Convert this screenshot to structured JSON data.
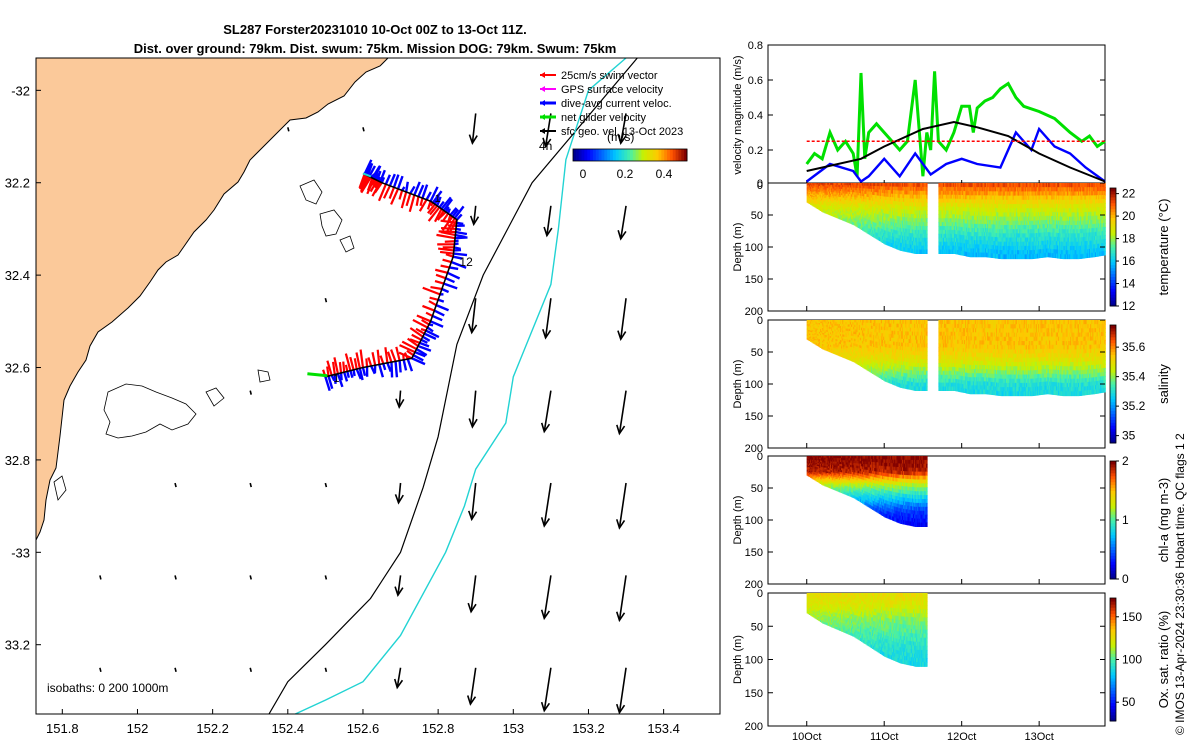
{
  "title": {
    "line1": "SL287 Forster20231010 10-Oct 00Z to 13-Oct 11Z.",
    "line2": "Dist. over ground: 79km. Dist. swum: 75km. Mission DOG: 79km. Swum: 75km"
  },
  "credit": "© IMOS 13-Apr-2024 23:30:36 Hobart time. QC flags 1  2",
  "colors": {
    "land": "#fbc99a",
    "swim": "#ff0000",
    "gps": "#ff00ff",
    "current": "#0000ff",
    "net": "#00e000",
    "sfc": "#000000",
    "isobath200": "#000000",
    "isobath1000": "#22d3d3"
  },
  "chart_data": [
    {
      "type": "map",
      "legend": {
        "entries": [
          "25cm/s swim vector",
          "GPS surface velocity",
          "dive-avg current veloc.",
          "net glider velocity",
          "sfc geo. vel. 13-Oct 2023"
        ],
        "placement": "top-right"
      },
      "annotation_4h": "4h",
      "colorbar": {
        "label": "(m/s)",
        "ticks": [
          "0",
          "0.2",
          "0.4"
        ],
        "range": [
          0,
          0.5
        ]
      },
      "isobath_note": "isobaths: 0   200  1000m",
      "lon_ticks": [
        151.8,
        152,
        152.2,
        152.4,
        152.6,
        152.8,
        153,
        153.2,
        153.4
      ],
      "lat_ticks": [
        -32,
        -32.2,
        -32.4,
        -32.6,
        -32.8,
        -33,
        -33.2
      ],
      "lat_tick_labels": [
        "-32",
        "32.2",
        "32.4",
        "32.6",
        "32.8",
        "-33",
        "33.2"
      ],
      "lon_range": [
        151.73,
        153.55
      ],
      "lat_range": [
        -33.35,
        -31.93
      ],
      "track_labels": [
        "1",
        "12",
        "1"
      ],
      "track": [
        [
          152.5,
          -32.62
        ],
        [
          152.6,
          -32.6
        ],
        [
          152.73,
          -32.58
        ],
        [
          152.78,
          -32.5
        ],
        [
          152.84,
          -32.36
        ],
        [
          152.85,
          -32.28
        ],
        [
          152.78,
          -32.24
        ],
        [
          152.65,
          -32.2
        ],
        [
          152.6,
          -32.18
        ]
      ],
      "isobath_200": [
        [
          153.33,
          -31.93
        ],
        [
          153.05,
          -32.2
        ],
        [
          152.92,
          -32.4
        ],
        [
          152.85,
          -32.55
        ],
        [
          152.8,
          -32.75
        ],
        [
          152.76,
          -32.86
        ],
        [
          152.7,
          -33
        ],
        [
          152.62,
          -33.1
        ],
        [
          152.56,
          -33.15
        ],
        [
          152.5,
          -33.2
        ],
        [
          152.4,
          -33.28
        ],
        [
          152.35,
          -33.35
        ]
      ],
      "isobath_1000": [
        [
          153.3,
          -31.93
        ],
        [
          153.2,
          -32.0
        ],
        [
          153.14,
          -32.15
        ],
        [
          153.12,
          -32.3
        ],
        [
          153.1,
          -32.42
        ],
        [
          153.03,
          -32.56
        ],
        [
          153.0,
          -32.62
        ],
        [
          152.98,
          -32.72
        ],
        [
          152.9,
          -32.82
        ],
        [
          152.87,
          -32.9
        ],
        [
          152.82,
          -33.0
        ],
        [
          152.7,
          -33.18
        ],
        [
          152.6,
          -33.28
        ],
        [
          152.5,
          -33.32
        ],
        [
          152.42,
          -33.35
        ]
      ],
      "current_vectors": [
        {
          "lon": 152.9,
          "lat": -32.05,
          "u": -0.05,
          "v": -0.45
        },
        {
          "lon": 153.1,
          "lat": -32.05,
          "u": -0.08,
          "v": -0.5
        },
        {
          "lon": 153.3,
          "lat": -32.05,
          "u": -0.08,
          "v": -0.45
        },
        {
          "lon": 152.9,
          "lat": -32.25,
          "u": -0.03,
          "v": -0.28
        },
        {
          "lon": 153.1,
          "lat": -32.25,
          "u": -0.06,
          "v": -0.45
        },
        {
          "lon": 153.3,
          "lat": -32.25,
          "u": -0.08,
          "v": -0.5
        },
        {
          "lon": 152.9,
          "lat": -32.45,
          "u": -0.06,
          "v": -0.52
        },
        {
          "lon": 153.1,
          "lat": -32.45,
          "u": -0.08,
          "v": -0.6
        },
        {
          "lon": 153.3,
          "lat": -32.45,
          "u": -0.08,
          "v": -0.62
        },
        {
          "lon": 152.7,
          "lat": -32.65,
          "u": -0.02,
          "v": -0.25
        },
        {
          "lon": 152.9,
          "lat": -32.65,
          "u": -0.05,
          "v": -0.55
        },
        {
          "lon": 153.1,
          "lat": -32.65,
          "u": -0.1,
          "v": -0.62
        },
        {
          "lon": 153.3,
          "lat": -32.65,
          "u": -0.1,
          "v": -0.65
        },
        {
          "lon": 152.7,
          "lat": -32.85,
          "u": -0.03,
          "v": -0.3
        },
        {
          "lon": 152.9,
          "lat": -32.85,
          "u": -0.06,
          "v": -0.55
        },
        {
          "lon": 153.1,
          "lat": -32.85,
          "u": -0.1,
          "v": -0.65
        },
        {
          "lon": 153.3,
          "lat": -32.85,
          "u": -0.1,
          "v": -0.68
        },
        {
          "lon": 152.7,
          "lat": -33.05,
          "u": -0.04,
          "v": -0.3
        },
        {
          "lon": 152.9,
          "lat": -33.05,
          "u": -0.07,
          "v": -0.55
        },
        {
          "lon": 153.1,
          "lat": -33.05,
          "u": -0.1,
          "v": -0.65
        },
        {
          "lon": 153.3,
          "lat": -33.05,
          "u": -0.1,
          "v": -0.68
        },
        {
          "lon": 152.7,
          "lat": -33.25,
          "u": -0.05,
          "v": -0.3
        },
        {
          "lon": 152.9,
          "lat": -33.25,
          "u": -0.08,
          "v": -0.55
        },
        {
          "lon": 153.1,
          "lat": -33.25,
          "u": -0.1,
          "v": -0.65
        },
        {
          "lon": 153.3,
          "lat": -33.25,
          "u": -0.1,
          "v": -0.68
        }
      ],
      "current_dots": [
        [
          152.6,
          -32.08
        ],
        [
          152.4,
          -32.08
        ],
        [
          152.5,
          -32.45
        ],
        [
          152.3,
          -32.65
        ],
        [
          152.1,
          -32.85
        ],
        [
          152.3,
          -32.85
        ],
        [
          151.9,
          -33.05
        ],
        [
          152.1,
          -33.05
        ],
        [
          152.3,
          -33.05
        ],
        [
          151.9,
          -33.25
        ],
        [
          152.1,
          -33.25
        ],
        [
          152.3,
          -33.25
        ],
        [
          152.5,
          -32.85
        ],
        [
          152.5,
          -33.05
        ],
        [
          152.5,
          -33.25
        ]
      ]
    },
    {
      "type": "line",
      "ylabel": "velocity magnitude (m/s)",
      "ylim": [
        0,
        0.8
      ],
      "yticks": [
        "0",
        "0.2",
        "0.4",
        "0.6",
        "0.8"
      ],
      "x_range_days": [
        9.5,
        13.85
      ],
      "series": [
        {
          "color": "#00e000",
          "x": [
            10,
            10.1,
            10.2,
            10.3,
            10.4,
            10.5,
            10.6,
            10.65,
            10.7,
            10.75,
            10.8,
            10.9,
            11.0,
            11.1,
            11.2,
            11.3,
            11.4,
            11.5,
            11.55,
            11.6,
            11.65,
            11.7,
            11.8,
            11.9,
            12.0,
            12.1,
            12.15,
            12.2,
            12.3,
            12.4,
            12.5,
            12.6,
            12.7,
            12.8,
            13.0,
            13.2,
            13.4,
            13.55,
            13.65,
            13.75,
            13.85
          ],
          "y": [
            0.12,
            0.18,
            0.15,
            0.3,
            0.2,
            0.25,
            0.18,
            0.05,
            0.64,
            0.15,
            0.3,
            0.35,
            0.3,
            0.25,
            0.2,
            0.25,
            0.6,
            0.05,
            0.3,
            0.2,
            0.65,
            0.25,
            0.2,
            0.3,
            0.45,
            0.45,
            0.3,
            0.44,
            0.48,
            0.5,
            0.55,
            0.58,
            0.5,
            0.45,
            0.42,
            0.38,
            0.3,
            0.25,
            0.28,
            0.22,
            0.25
          ]
        },
        {
          "color": "#0000ff",
          "x": [
            10,
            10.3,
            10.6,
            10.7,
            10.8,
            11.0,
            11.2,
            11.4,
            11.6,
            11.8,
            12.0,
            12.2,
            12.5,
            12.7,
            12.9,
            13.0,
            13.2,
            13.4,
            13.6,
            13.85
          ],
          "y": [
            0.02,
            0.12,
            0.08,
            0.02,
            0.05,
            0.15,
            0.05,
            0.18,
            0.06,
            0.12,
            0.15,
            0.12,
            0.1,
            0.3,
            0.2,
            0.32,
            0.22,
            0.18,
            0.1,
            0.02
          ]
        },
        {
          "color": "#000000",
          "x": [
            10,
            10.7,
            11.0,
            11.5,
            11.9,
            12.2,
            12.6,
            13.0,
            13.4,
            13.85
          ],
          "y": [
            0.08,
            0.15,
            0.22,
            0.32,
            0.36,
            0.33,
            0.28,
            0.18,
            0.1,
            0.02
          ]
        },
        {
          "color": "#ff0000",
          "dashed": true,
          "x": [
            10,
            13.85
          ],
          "y": [
            0.25,
            0.25
          ]
        }
      ]
    },
    {
      "type": "heatmap",
      "ylabel": "Depth (m)",
      "cbar_label": "temperature (°C)",
      "ylim": [
        0,
        200
      ],
      "yticks": [
        "0",
        "50",
        "100",
        "150",
        "200"
      ],
      "cbar_range": [
        12,
        22.5
      ],
      "cbar_ticks": [
        "12",
        "14",
        "16",
        "18",
        "20",
        "22"
      ],
      "segments": [
        {
          "x": [
            10.0,
            10.2,
            10.4,
            10.6,
            10.8,
            11.0,
            11.2,
            11.4,
            11.55
          ],
          "max_depth": [
            30,
            45,
            55,
            65,
            80,
            95,
            105,
            110,
            110
          ]
        },
        {
          "x": [
            11.7,
            11.9,
            12.1,
            12.3,
            12.5,
            12.7,
            12.9,
            13.1,
            13.3,
            13.5,
            13.7,
            13.85
          ],
          "max_depth": [
            110,
            110,
            115,
            115,
            118,
            118,
            118,
            115,
            118,
            118,
            115,
            112
          ]
        }
      ],
      "profile": [
        [
          0,
          21.5
        ],
        [
          15,
          20.5
        ],
        [
          35,
          19
        ],
        [
          55,
          18
        ],
        [
          80,
          16.8
        ],
        [
          110,
          15.8
        ],
        [
          125,
          15.5
        ]
      ]
    },
    {
      "type": "heatmap",
      "ylabel": "Depth (m)",
      "cbar_label": "salinity",
      "ylim": [
        0,
        200
      ],
      "yticks": [
        "0",
        "50",
        "100",
        "150",
        "200"
      ],
      "cbar_range": [
        34.95,
        35.75
      ],
      "cbar_ticks": [
        "35",
        "35.2",
        "35.4",
        "35.6"
      ],
      "segments": [
        {
          "x": [
            10.0,
            10.2,
            10.4,
            10.6,
            10.8,
            11.0,
            11.2,
            11.4,
            11.55
          ],
          "max_depth": [
            30,
            45,
            55,
            65,
            80,
            95,
            105,
            110,
            110
          ]
        },
        {
          "x": [
            11.7,
            11.9,
            12.1,
            12.3,
            12.5,
            12.7,
            12.9,
            13.1,
            13.3,
            13.5,
            13.7,
            13.85
          ],
          "max_depth": [
            110,
            110,
            115,
            115,
            118,
            118,
            118,
            115,
            118,
            118,
            115,
            112
          ]
        }
      ],
      "profile": [
        [
          0,
          35.55
        ],
        [
          40,
          35.55
        ],
        [
          60,
          35.5
        ],
        [
          80,
          35.4
        ],
        [
          100,
          35.3
        ],
        [
          120,
          35.28
        ]
      ]
    },
    {
      "type": "heatmap",
      "ylabel": "Depth (m)",
      "cbar_label": "chl-a (mg m-3)",
      "ylim": [
        0,
        200
      ],
      "yticks": [
        "0",
        "50",
        "100",
        "150",
        "200"
      ],
      "cbar_range": [
        0,
        2
      ],
      "cbar_ticks": [
        "0",
        "1",
        "2"
      ],
      "segments": [
        {
          "x": [
            10.0,
            10.2,
            10.4,
            10.6,
            10.8,
            11.0,
            11.2,
            11.4,
            11.55
          ],
          "max_depth": [
            30,
            45,
            55,
            65,
            80,
            95,
            105,
            110,
            110
          ]
        }
      ],
      "profile": [
        [
          0,
          2.0
        ],
        [
          25,
          1.9
        ],
        [
          45,
          1.2
        ],
        [
          65,
          0.8
        ],
        [
          85,
          0.4
        ],
        [
          110,
          0.2
        ]
      ]
    },
    {
      "type": "heatmap",
      "ylabel": "Depth (m)",
      "cbar_label": "Ox. sat. ratio (%)",
      "ylim": [
        0,
        200
      ],
      "yticks": [
        "0",
        "50",
        "100",
        "150",
        "200"
      ],
      "cbar_range": [
        28,
        172
      ],
      "cbar_ticks": [
        "50",
        "100",
        "150"
      ],
      "x_ticks": [
        10,
        11,
        12,
        13
      ],
      "x_tick_labels": [
        "10Oct",
        "11Oct",
        "12Oct",
        "13Oct"
      ],
      "segments": [
        {
          "x": [
            10.0,
            10.2,
            10.4,
            10.6,
            10.8,
            11.0,
            11.2,
            11.4,
            11.55
          ],
          "max_depth": [
            30,
            45,
            55,
            65,
            80,
            95,
            105,
            110,
            110
          ]
        }
      ],
      "profile": [
        [
          0,
          128
        ],
        [
          20,
          122
        ],
        [
          40,
          108
        ],
        [
          60,
          100
        ],
        [
          80,
          92
        ],
        [
          110,
          86
        ]
      ]
    }
  ]
}
